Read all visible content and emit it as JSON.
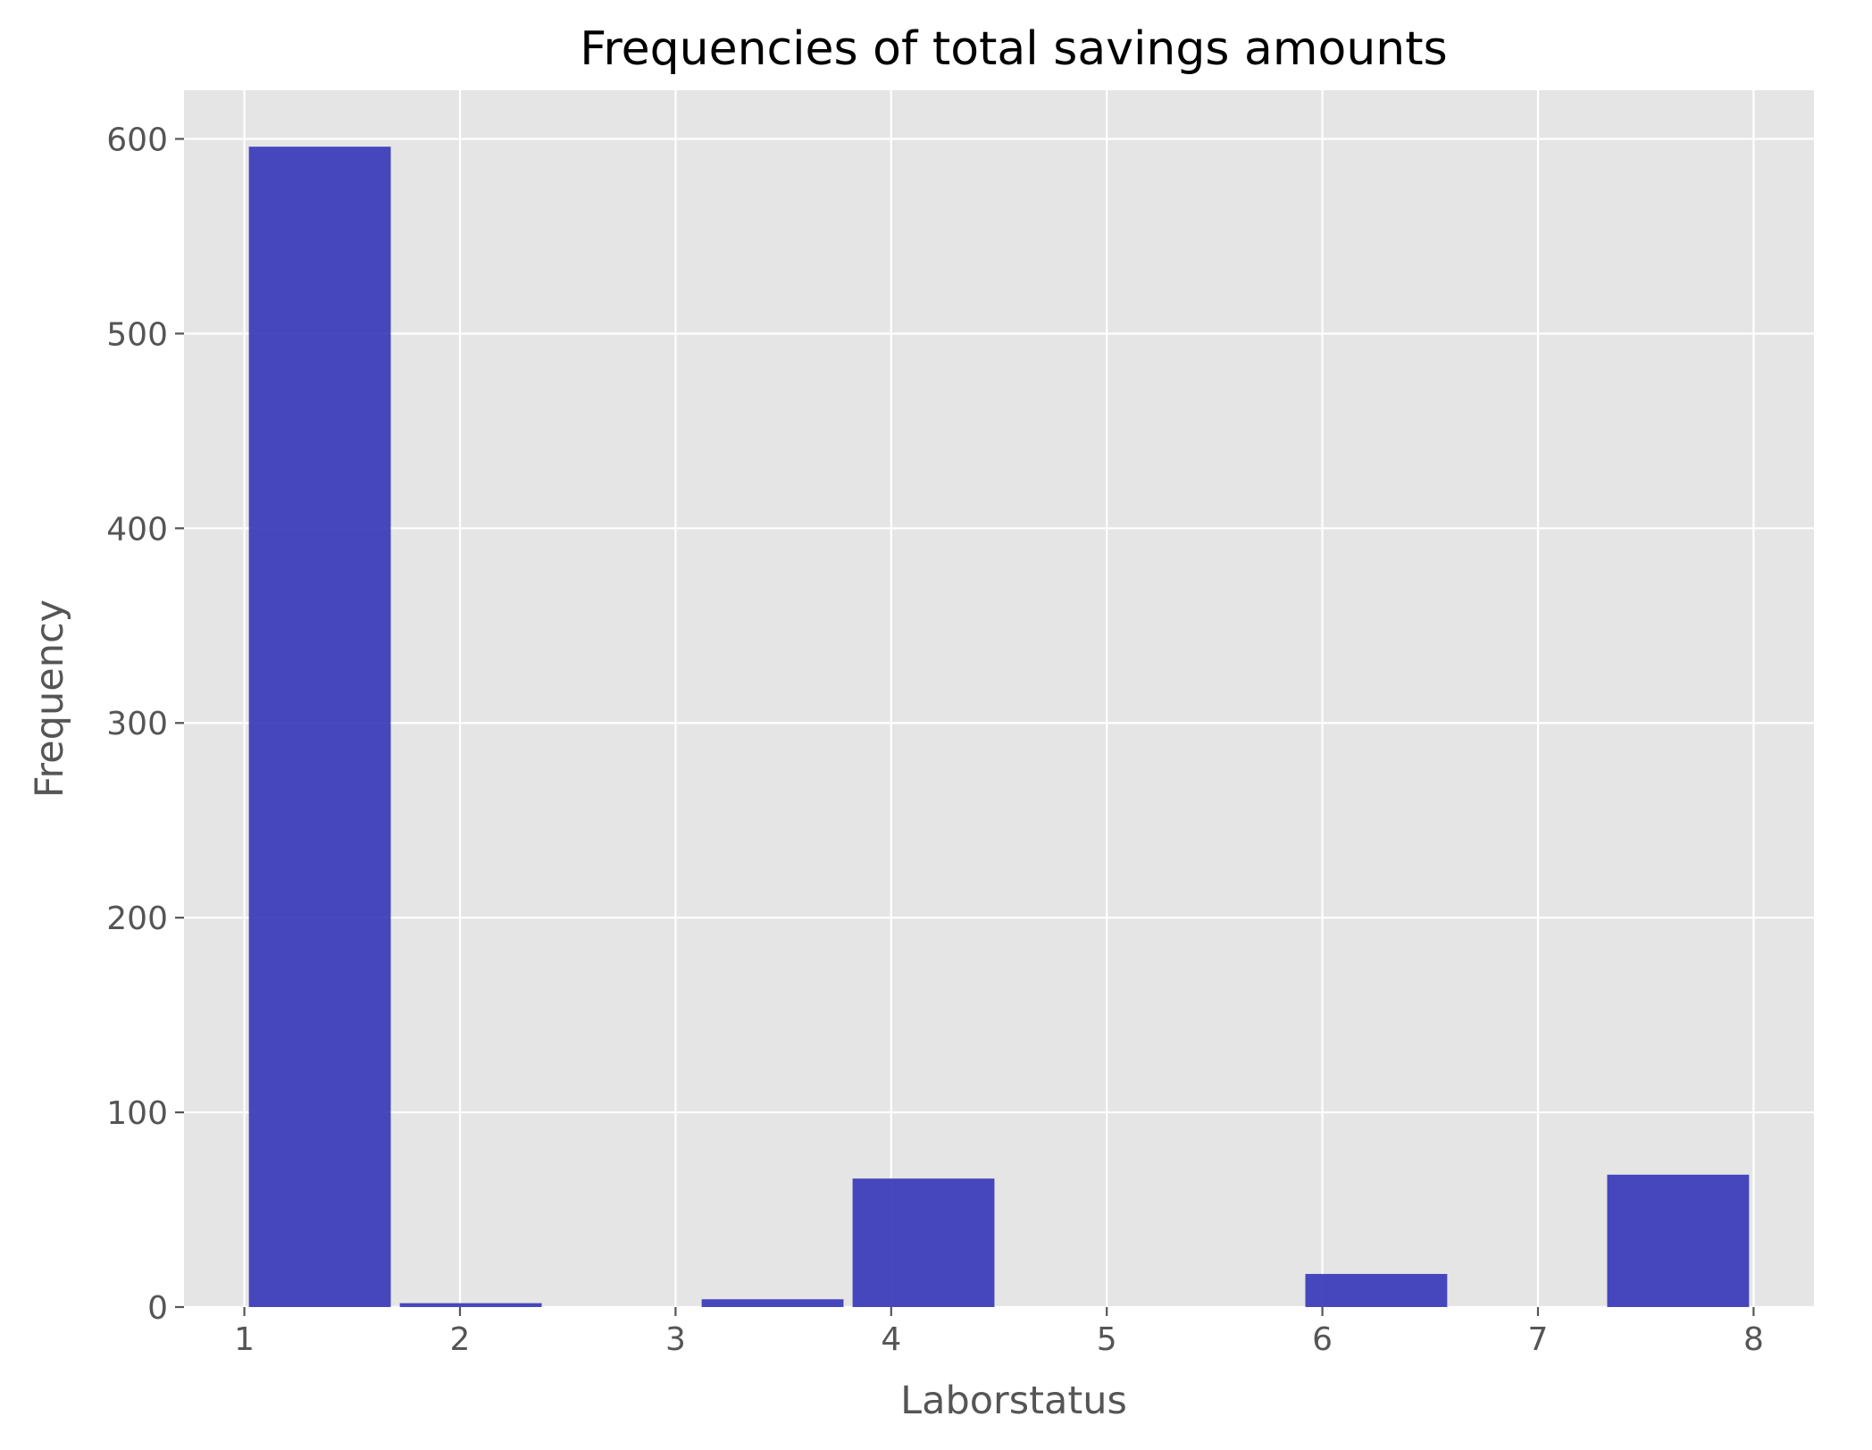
{
  "chart_data": {
    "type": "histogram",
    "title": "Frequencies of total savings amounts",
    "xlabel": "Laborstatus",
    "ylabel": "Frequency",
    "xlim": [
      0.72,
      8.28
    ],
    "ylim": [
      0,
      625
    ],
    "x_ticks": [
      1,
      2,
      3,
      4,
      5,
      6,
      7,
      8
    ],
    "y_ticks": [
      0,
      100,
      200,
      300,
      400,
      500,
      600
    ],
    "grid": true,
    "bar_color": "#3434b8",
    "bins": [
      {
        "start": 1.0,
        "end": 1.7,
        "value": 596
      },
      {
        "start": 1.7,
        "end": 2.4,
        "value": 2
      },
      {
        "start": 2.4,
        "end": 3.1,
        "value": 0
      },
      {
        "start": 3.1,
        "end": 3.8,
        "value": 4
      },
      {
        "start": 3.8,
        "end": 4.5,
        "value": 66
      },
      {
        "start": 4.5,
        "end": 5.2,
        "value": 0
      },
      {
        "start": 5.2,
        "end": 5.9,
        "value": 0
      },
      {
        "start": 5.9,
        "end": 6.6,
        "value": 17
      },
      {
        "start": 6.6,
        "end": 7.3,
        "value": 0
      },
      {
        "start": 7.3,
        "end": 8.0,
        "value": 68
      }
    ]
  }
}
